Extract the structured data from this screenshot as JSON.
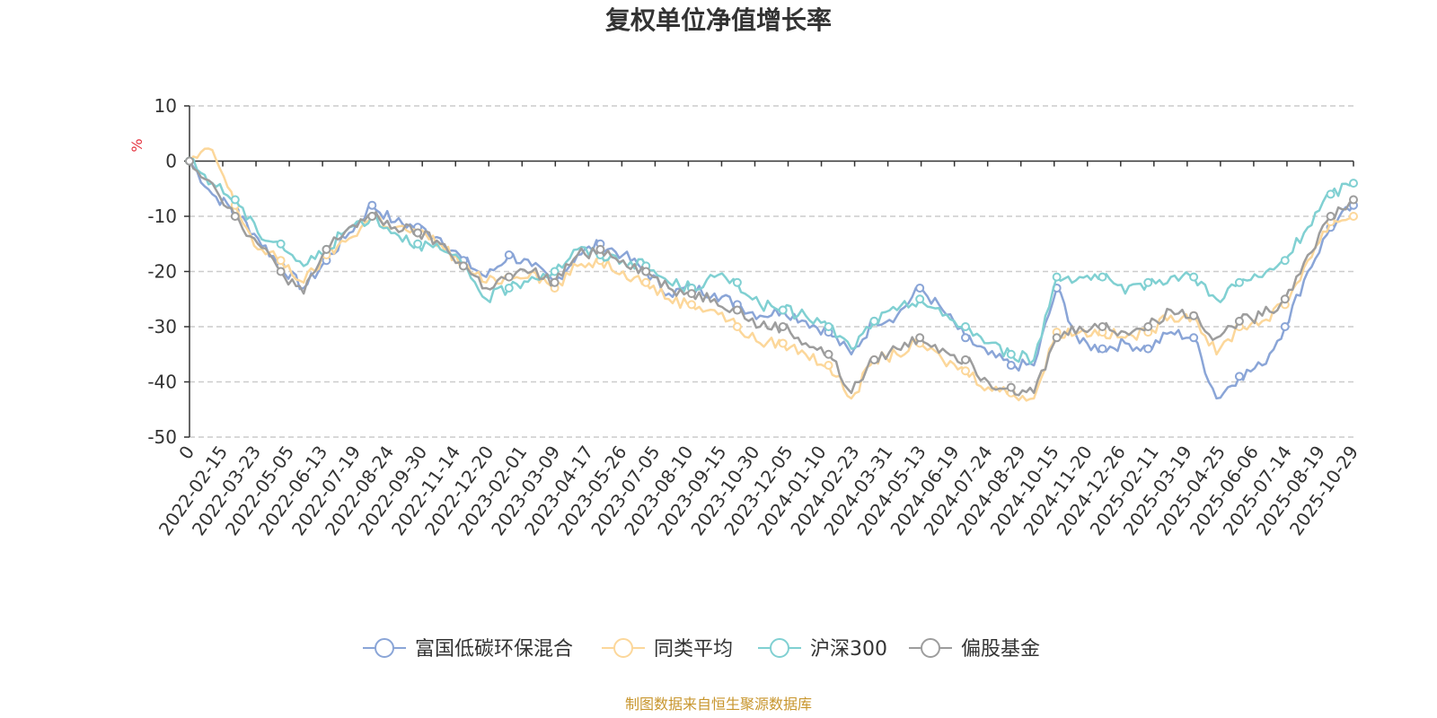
{
  "chart_data": {
    "type": "line",
    "title": "复权单位净值增长率",
    "ylabel": "%",
    "ylim": [
      -50,
      10
    ],
    "yticks": [
      10,
      0,
      -10,
      -20,
      -30,
      -40,
      -50
    ],
    "xticks": [
      "0",
      "2022-02-15",
      "2022-03-23",
      "2022-05-05",
      "2022-06-13",
      "2022-07-19",
      "2022-08-24",
      "2022-09-30",
      "2022-11-14",
      "2022-12-20",
      "2023-02-01",
      "2023-03-09",
      "2023-04-17",
      "2023-05-26",
      "2023-07-05",
      "2023-08-10",
      "2023-09-15",
      "2023-10-30",
      "2023-12-05",
      "2024-01-10",
      "2024-02-23",
      "2024-03-31",
      "2024-05-13",
      "2024-06-19",
      "2024-07-24",
      "2024-08-29",
      "2024-10-15",
      "2024-11-20",
      "2024-12-26",
      "2025-02-11",
      "2025-03-19",
      "2025-04-25",
      "2025-06-06",
      "2025-07-14",
      "2025-08-19",
      "2025-10-29"
    ],
    "grid": "horizontal-dashed",
    "legend_position": "bottom-center",
    "series": [
      {
        "name": "富国低碳环保混合",
        "color": "#8aa5d7",
        "values": [
          0,
          -6,
          -9,
          -14,
          -19,
          -23,
          -18,
          -13,
          -8,
          -11,
          -12,
          -14,
          -18,
          -21,
          -17,
          -19,
          -22,
          -17,
          -15,
          -17,
          -20,
          -24,
          -23,
          -24,
          -26,
          -28,
          -27,
          -29,
          -31,
          -35,
          -29,
          -28,
          -23,
          -27,
          -32,
          -35,
          -37,
          -37,
          -23,
          -33,
          -34,
          -33,
          -34,
          -31,
          -32,
          -43,
          -39,
          -37,
          -30,
          -20,
          -12,
          -8
        ]
      },
      {
        "name": "同类平均",
        "color": "#fcd79a",
        "values": [
          0,
          2,
          -8,
          -16,
          -18,
          -22,
          -17,
          -14,
          -10,
          -12,
          -13,
          -15,
          -19,
          -22,
          -21,
          -20,
          -23,
          -19,
          -18,
          -20,
          -22,
          -25,
          -26,
          -27,
          -30,
          -33,
          -33,
          -35,
          -37,
          -43,
          -36,
          -35,
          -33,
          -36,
          -38,
          -41,
          -42,
          -43,
          -31,
          -31,
          -31,
          -32,
          -31,
          -28,
          -28,
          -35,
          -30,
          -29,
          -26,
          -18,
          -11,
          -10
        ]
      },
      {
        "name": "沪深300",
        "color": "#80d0d2",
        "values": [
          0,
          -4,
          -7,
          -13,
          -15,
          -19,
          -16,
          -12,
          -10,
          -13,
          -15,
          -16,
          -19,
          -25,
          -23,
          -21,
          -20,
          -16,
          -17,
          -18,
          -19,
          -22,
          -23,
          -21,
          -22,
          -26,
          -27,
          -28,
          -30,
          -34,
          -29,
          -27,
          -25,
          -28,
          -30,
          -33,
          -35,
          -36,
          -21,
          -21,
          -21,
          -24,
          -22,
          -21,
          -21,
          -25,
          -22,
          -21,
          -18,
          -12,
          -6,
          -4
        ]
      },
      {
        "name": "偏股基金",
        "color": "#9d9d9d",
        "values": [
          0,
          -4,
          -10,
          -15,
          -20,
          -24,
          -16,
          -12,
          -10,
          -12,
          -13,
          -15,
          -19,
          -23,
          -21,
          -20,
          -22,
          -17,
          -16,
          -18,
          -20,
          -23,
          -24,
          -25,
          -27,
          -30,
          -30,
          -33,
          -35,
          -42,
          -36,
          -34,
          -32,
          -34,
          -36,
          -40,
          -41,
          -42,
          -32,
          -30,
          -30,
          -31,
          -30,
          -27,
          -28,
          -32,
          -29,
          -28,
          -25,
          -17,
          -10,
          -7
        ]
      }
    ]
  },
  "source_text": "制图数据来自恒生聚源数据库"
}
